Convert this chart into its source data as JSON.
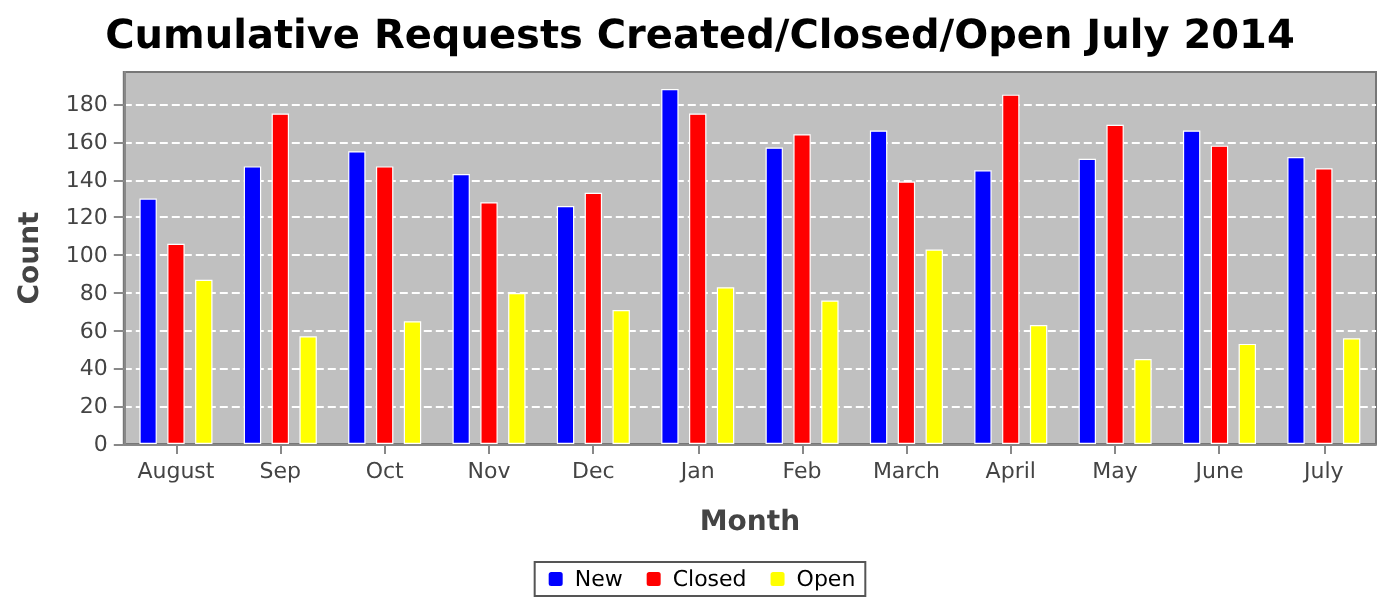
{
  "chart_data": {
    "type": "bar",
    "title": "Cumulative Requests Created/Closed/Open July 2014",
    "xlabel": "Month",
    "ylabel": "Count",
    "categories": [
      "August",
      "Sep",
      "Oct",
      "Nov",
      "Dec",
      "Jan",
      "Feb",
      "March",
      "April",
      "May",
      "June",
      "July"
    ],
    "series": [
      {
        "name": "New",
        "color": "#0000ff",
        "values": [
          130,
          147,
          155,
          143,
          126,
          188,
          157,
          166,
          145,
          151,
          166,
          152
        ]
      },
      {
        "name": "Closed",
        "color": "#ff0000",
        "values": [
          106,
          175,
          147,
          128,
          133,
          175,
          164,
          139,
          185,
          169,
          158,
          146
        ]
      },
      {
        "name": "Open",
        "color": "#ffff00",
        "values": [
          87,
          57,
          65,
          80,
          71,
          83,
          76,
          103,
          63,
          45,
          53,
          56
        ]
      }
    ],
    "ylim": [
      0,
      197
    ],
    "yticks": [
      0,
      20,
      40,
      60,
      80,
      100,
      120,
      140,
      160,
      180
    ],
    "grid": "y",
    "legend": "bottom"
  }
}
